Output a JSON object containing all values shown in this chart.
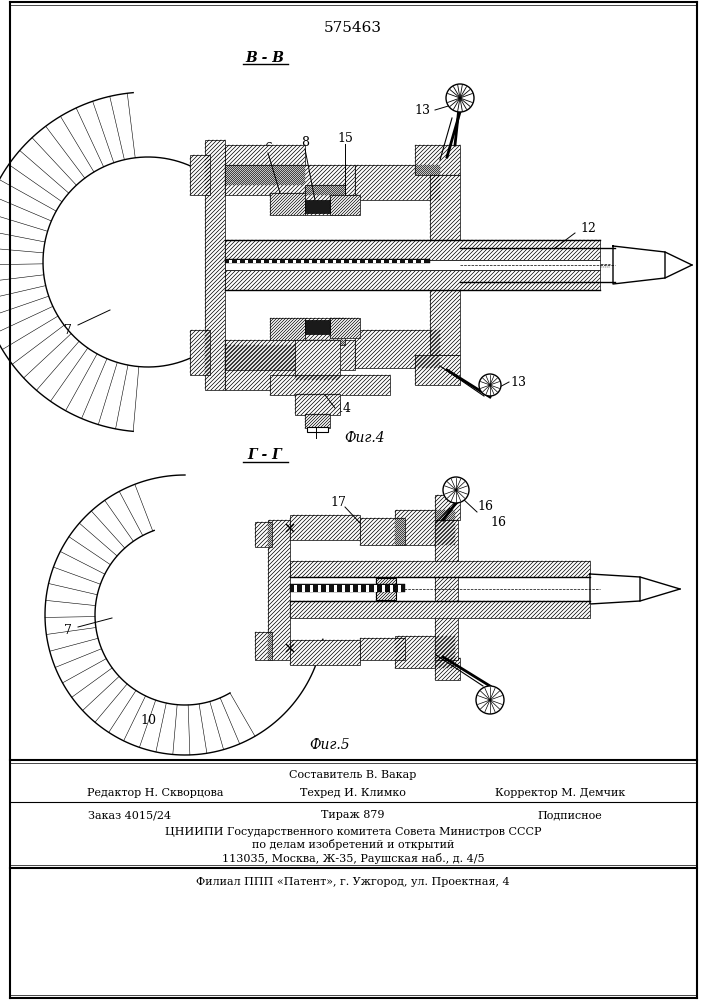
{
  "patent_number": "575463",
  "section_bb": "В - В",
  "section_gg": "Г - Г",
  "fig4_caption": "Фиг.4",
  "fig5_caption": "Фиг.5",
  "footer_sestavitel": "Составитель В. Вакар",
  "footer_redaktor": "Редактор Н. Скворцова",
  "footer_tehred": "Техред И. Климко",
  "footer_korrektor": "Корректор М. Демчик",
  "footer_zakaz": "Заказ 4015/24",
  "footer_tirazh": "Тираж 879",
  "footer_podpisnoe": "Подписное",
  "footer_cniipи": "ЦНИИПИ Государственного комитета Совета Министров СССР",
  "footer_po_delam": "по делам изобретений и открытий",
  "footer_address": "113035, Москва, Ж-35, Раушская наб., д. 4/5",
  "footer_filial": "Филиал ППП «Патент», г. Ужгород, ул. Проектная, 4",
  "bg_color": "#ffffff",
  "lc": "#000000"
}
